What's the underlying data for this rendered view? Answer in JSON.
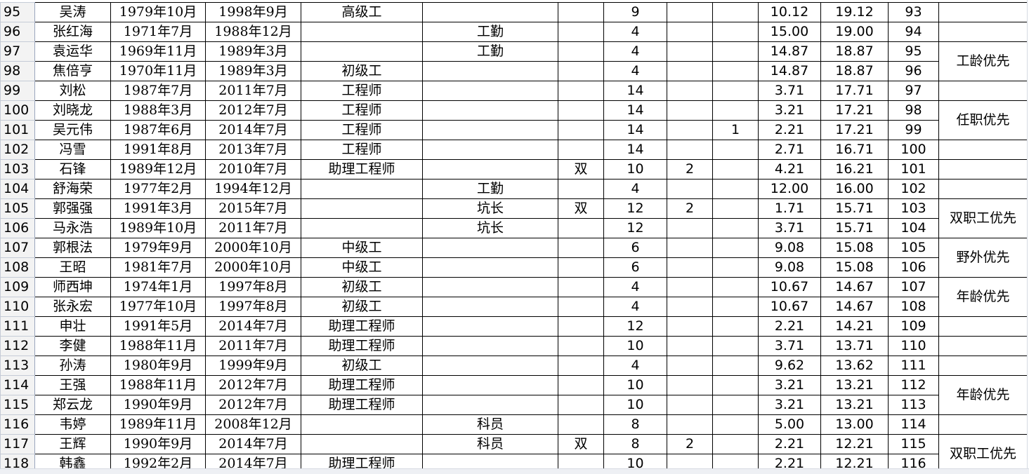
{
  "rows": [
    {
      "n": "95",
      "name": "吴涛",
      "birth": "1979年10月",
      "start": "1998年9月",
      "title": "高级工",
      "post": "",
      "dual": "",
      "score": "9",
      "c9": "",
      "c10": "",
      "c11": "10.12",
      "total": "19.12",
      "rank": "93"
    },
    {
      "n": "96",
      "name": "张红海",
      "birth": "1971年7月",
      "start": "1988年12月",
      "title": "",
      "post": "工勤",
      "dual": "",
      "score": "4",
      "c9": "",
      "c10": "",
      "c11": "15.00",
      "total": "19.00",
      "rank": "94"
    },
    {
      "n": "97",
      "name": "袁运华",
      "birth": "1969年11月",
      "start": "1989年3月",
      "title": "",
      "post": "工勤",
      "dual": "",
      "score": "4",
      "c9": "",
      "c10": "",
      "c11": "14.87",
      "total": "18.87",
      "rank": "95"
    },
    {
      "n": "98",
      "name": "焦倍亨",
      "birth": "1970年11月",
      "start": "1989年3月",
      "title": "初级工",
      "post": "",
      "dual": "",
      "score": "4",
      "c9": "",
      "c10": "",
      "c11": "14.87",
      "total": "18.87",
      "rank": "96"
    },
    {
      "n": "99",
      "name": "刘松",
      "birth": "1987年7月",
      "start": "2011年7月",
      "title": "工程师",
      "post": "",
      "dual": "",
      "score": "14",
      "c9": "",
      "c10": "",
      "c11": "3.71",
      "total": "17.71",
      "rank": "97"
    },
    {
      "n": "100",
      "name": "刘晓龙",
      "birth": "1988年3月",
      "start": "2012年7月",
      "title": "工程师",
      "post": "",
      "dual": "",
      "score": "14",
      "c9": "",
      "c10": "",
      "c11": "3.21",
      "total": "17.21",
      "rank": "98"
    },
    {
      "n": "101",
      "name": "吴元伟",
      "birth": "1987年6月",
      "start": "2014年7月",
      "title": "工程师",
      "post": "",
      "dual": "",
      "score": "14",
      "c9": "",
      "c10": "1",
      "c11": "2.21",
      "total": "17.21",
      "rank": "99"
    },
    {
      "n": "102",
      "name": "冯雪",
      "birth": "1991年8月",
      "start": "2013年7月",
      "title": "工程师",
      "post": "",
      "dual": "",
      "score": "14",
      "c9": "",
      "c10": "",
      "c11": "2.71",
      "total": "16.71",
      "rank": "100"
    },
    {
      "n": "103",
      "name": "石锋",
      "birth": "1989年12月",
      "start": "2010年7月",
      "title": "助理工程师",
      "post": "",
      "dual": "双",
      "score": "10",
      "c9": "2",
      "c10": "",
      "c11": "4.21",
      "total": "16.21",
      "rank": "101"
    },
    {
      "n": "104",
      "name": "舒海荣",
      "birth": "1977年2月",
      "start": "1994年12月",
      "title": "",
      "post": "工勤",
      "dual": "",
      "score": "4",
      "c9": "",
      "c10": "",
      "c11": "12.00",
      "total": "16.00",
      "rank": "102"
    },
    {
      "n": "105",
      "name": "郭强强",
      "birth": "1991年3月",
      "start": "2015年7月",
      "title": "",
      "post": "坑长",
      "dual": "双",
      "score": "12",
      "c9": "2",
      "c10": "",
      "c11": "1.71",
      "total": "15.71",
      "rank": "103"
    },
    {
      "n": "106",
      "name": "马永浩",
      "birth": "1989年10月",
      "start": "2011年7月",
      "title": "",
      "post": "坑长",
      "dual": "",
      "score": "12",
      "c9": "",
      "c10": "",
      "c11": "3.71",
      "total": "15.71",
      "rank": "104"
    },
    {
      "n": "107",
      "name": "郭根法",
      "birth": "1979年9月",
      "start": "2000年10月",
      "title": "中级工",
      "post": "",
      "dual": "",
      "score": "6",
      "c9": "",
      "c10": "",
      "c11": "9.08",
      "total": "15.08",
      "rank": "105"
    },
    {
      "n": "108",
      "name": "王昭",
      "birth": "1981年7月",
      "start": "2000年10月",
      "title": "中级工",
      "post": "",
      "dual": "",
      "score": "6",
      "c9": "",
      "c10": "",
      "c11": "9.08",
      "total": "15.08",
      "rank": "106"
    },
    {
      "n": "109",
      "name": "师西坤",
      "birth": "1974年1月",
      "start": "1997年8月",
      "title": "初级工",
      "post": "",
      "dual": "",
      "score": "4",
      "c9": "",
      "c10": "",
      "c11": "10.67",
      "total": "14.67",
      "rank": "107"
    },
    {
      "n": "110",
      "name": "张永宏",
      "birth": "1977年10月",
      "start": "1997年8月",
      "title": "初级工",
      "post": "",
      "dual": "",
      "score": "4",
      "c9": "",
      "c10": "",
      "c11": "10.67",
      "total": "14.67",
      "rank": "108"
    },
    {
      "n": "111",
      "name": "申壮",
      "birth": "1991年5月",
      "start": "2014年7月",
      "title": "助理工程师",
      "post": "",
      "dual": "",
      "score": "12",
      "c9": "",
      "c10": "",
      "c11": "2.21",
      "total": "14.21",
      "rank": "109"
    },
    {
      "n": "112",
      "name": "李健",
      "birth": "1988年11月",
      "start": "2011年7月",
      "title": "助理工程师",
      "post": "",
      "dual": "",
      "score": "10",
      "c9": "",
      "c10": "",
      "c11": "3.71",
      "total": "13.71",
      "rank": "110"
    },
    {
      "n": "113",
      "name": "孙涛",
      "birth": "1980年9月",
      "start": "1999年9月",
      "title": "初级工",
      "post": "",
      "dual": "",
      "score": "4",
      "c9": "",
      "c10": "",
      "c11": "9.62",
      "total": "13.62",
      "rank": "111"
    },
    {
      "n": "114",
      "name": "王强",
      "birth": "1988年11月",
      "start": "2012年7月",
      "title": "助理工程师",
      "post": "",
      "dual": "",
      "score": "10",
      "c9": "",
      "c10": "",
      "c11": "3.21",
      "total": "13.21",
      "rank": "112"
    },
    {
      "n": "115",
      "name": "郑云龙",
      "birth": "1990年9月",
      "start": "2012年7月",
      "title": "助理工程师",
      "post": "",
      "dual": "",
      "score": "10",
      "c9": "",
      "c10": "",
      "c11": "3.21",
      "total": "13.21",
      "rank": "113"
    },
    {
      "n": "116",
      "name": "韦婷",
      "birth": "1989年11月",
      "start": "2008年12月",
      "title": "",
      "post": "科员",
      "dual": "",
      "score": "8",
      "c9": "",
      "c10": "",
      "c11": "5.00",
      "total": "13.00",
      "rank": "114"
    },
    {
      "n": "117",
      "name": "王辉",
      "birth": "1990年9月",
      "start": "2014年7月",
      "title": "",
      "post": "科员",
      "dual": "双",
      "score": "8",
      "c9": "2",
      "c10": "",
      "c11": "2.21",
      "total": "12.21",
      "rank": "115"
    },
    {
      "n": "118",
      "name": "韩鑫",
      "birth": "1992年2月",
      "start": "2014年7月",
      "title": "助理工程师",
      "post": "",
      "dual": "",
      "score": "10",
      "c9": "",
      "c10": "",
      "c11": "2.21",
      "total": "12.21",
      "rank": "116"
    }
  ],
  "notes": [
    {
      "rows": [
        "97",
        "98"
      ],
      "text": "工龄优先"
    },
    {
      "rows": [
        "100",
        "101"
      ],
      "text": "任职优先"
    },
    {
      "rows": [
        "105",
        "106"
      ],
      "text": "双职工优先"
    },
    {
      "rows": [
        "107",
        "108"
      ],
      "text": "野外优先"
    },
    {
      "rows": [
        "109",
        "110"
      ],
      "text": "年龄优先"
    },
    {
      "rows": [
        "114",
        "115"
      ],
      "text": "年龄优先"
    },
    {
      "rows": [
        "117",
        "118"
      ],
      "text": "双职工优先"
    }
  ]
}
